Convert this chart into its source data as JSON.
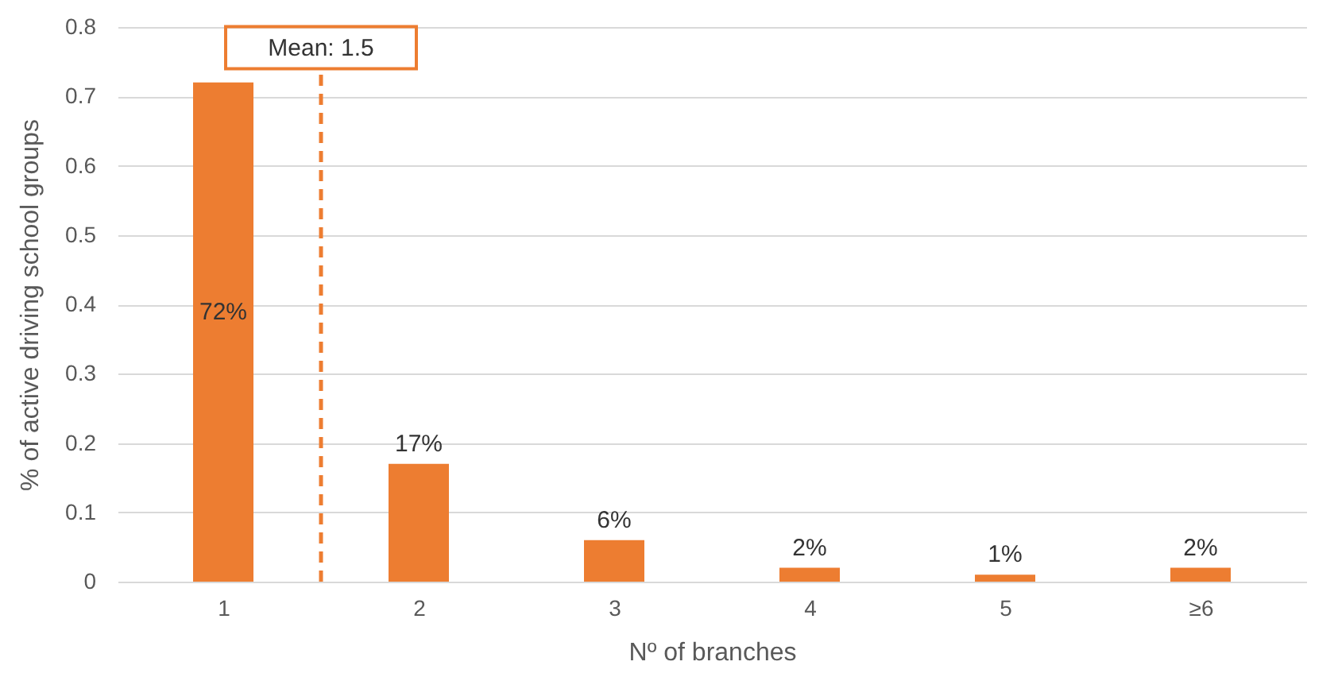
{
  "chart_data": {
    "type": "bar",
    "xlabel": "Nº of branches",
    "ylabel": "% of active driving school groups",
    "x": [
      1,
      2,
      3,
      4,
      5,
      6
    ],
    "values": [
      0.72,
      0.17,
      0.06,
      0.02,
      0.01,
      0.02
    ],
    "value_labels": [
      "72%",
      "17%",
      "6%",
      "2%",
      "1%",
      "2%"
    ],
    "color": "#ed7d31",
    "xlim": [
      0.5,
      6.5
    ],
    "xticks": [
      1,
      2,
      3,
      4,
      5,
      {
        "value": 6,
        "label": "≥6"
      }
    ],
    "ylim": [
      0,
      0.8
    ],
    "yticks": [
      0,
      0.1,
      0.2,
      0.3,
      0.4,
      0.5,
      0.6,
      0.7,
      0.8
    ],
    "grid": "y",
    "ref_lines": [
      {
        "axis": "x",
        "value": 1.5,
        "label": "Mean: 1.5",
        "color": "#ed7d31",
        "line_style": "dashed"
      }
    ]
  }
}
